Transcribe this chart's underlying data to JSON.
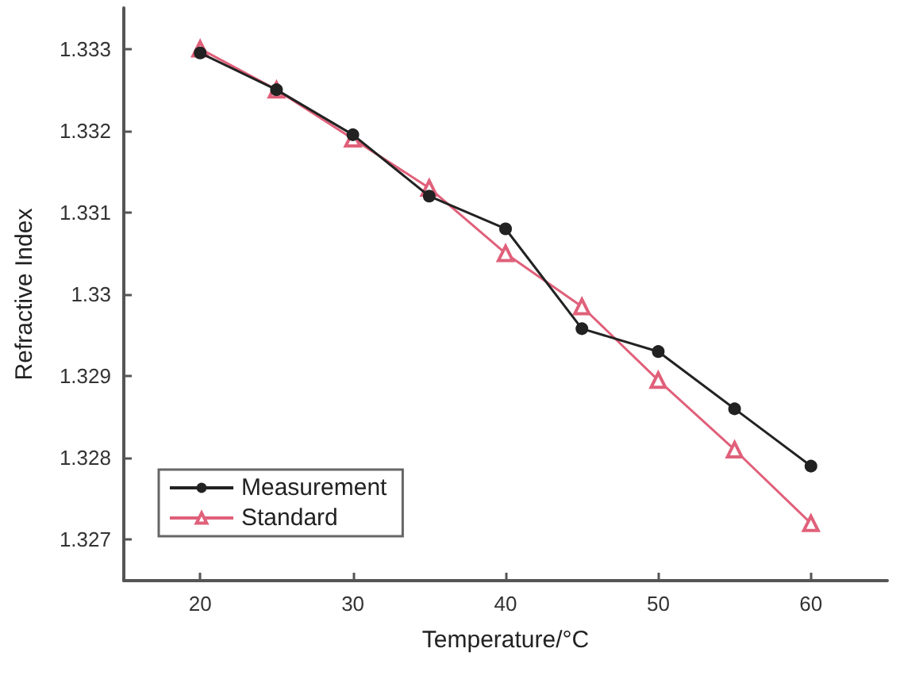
{
  "chart_data": {
    "type": "line",
    "xlabel": "Temperature/°C",
    "ylabel": "Refractive Index",
    "x": [
      20,
      25,
      30,
      35,
      40,
      45,
      50,
      55,
      60
    ],
    "series": [
      {
        "name": "Measurement",
        "color": "#222222",
        "marker": "circle",
        "values": [
          1.33295,
          1.3325,
          1.33195,
          1.3312,
          1.3308,
          1.32958,
          1.3293,
          1.3286,
          1.3279
        ]
      },
      {
        "name": "Standard",
        "color": "#e0607a",
        "marker": "triangle",
        "values": [
          1.333,
          1.3325,
          1.3319,
          1.3313,
          1.3305,
          1.32985,
          1.32895,
          1.3281,
          1.3272
        ]
      }
    ],
    "xlim": [
      15,
      65
    ],
    "xticks": [
      20,
      30,
      40,
      50,
      60
    ],
    "ylim": [
      1.3265,
      1.3335
    ],
    "yticks": [
      1.327,
      1.328,
      1.329,
      1.33,
      1.331,
      1.332,
      1.333
    ],
    "grid": false,
    "legend": "bottom left"
  }
}
